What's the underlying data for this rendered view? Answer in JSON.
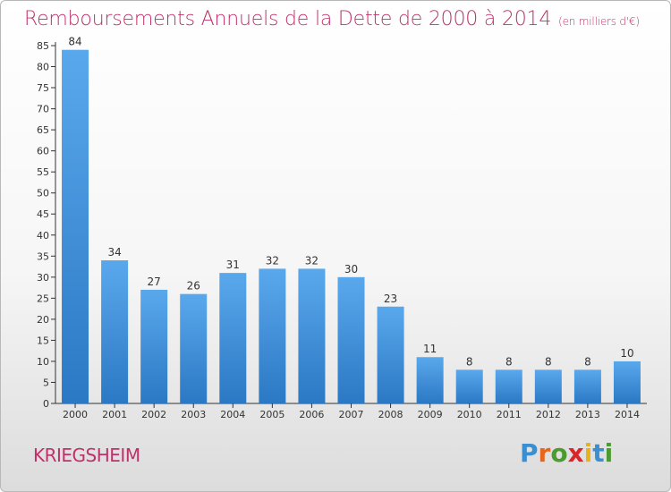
{
  "title": "Remboursements Annuels de la Dette de 2000 à 2014",
  "subtitle": "(en milliers d'€)",
  "commune": "KRIEGSHEIM",
  "logo": {
    "text": "Proxiti",
    "letters": [
      "P",
      "r",
      "o",
      "x",
      "i",
      "t",
      "i"
    ],
    "colors": [
      "#3a8fd1",
      "#e8661c",
      "#4c9b2e",
      "#d9262c",
      "#e8b21c",
      "#3a8fd1",
      "#4c9b2e"
    ]
  },
  "colors": {
    "title": "#c0306a",
    "bar_top": "#5aa8ec",
    "bar_bottom": "#2b78c4",
    "axis": "#333333"
  },
  "chart_data": {
    "type": "bar",
    "title": "Remboursements Annuels de la Dette de 2000 à 2014",
    "subtitle": "(en milliers d'€)",
    "xlabel": "",
    "ylabel": "",
    "categories": [
      "2000",
      "2001",
      "2002",
      "2003",
      "2004",
      "2005",
      "2006",
      "2007",
      "2008",
      "2009",
      "2010",
      "2011",
      "2012",
      "2013",
      "2014"
    ],
    "values": [
      84,
      34,
      27,
      26,
      31,
      32,
      32,
      30,
      23,
      11,
      8,
      8,
      8,
      8,
      10
    ],
    "ylim": [
      0,
      85
    ],
    "yticks": [
      0,
      5,
      10,
      15,
      20,
      25,
      30,
      35,
      40,
      45,
      50,
      55,
      60,
      65,
      70,
      75,
      80,
      85
    ],
    "grid": false,
    "legend": "none"
  }
}
